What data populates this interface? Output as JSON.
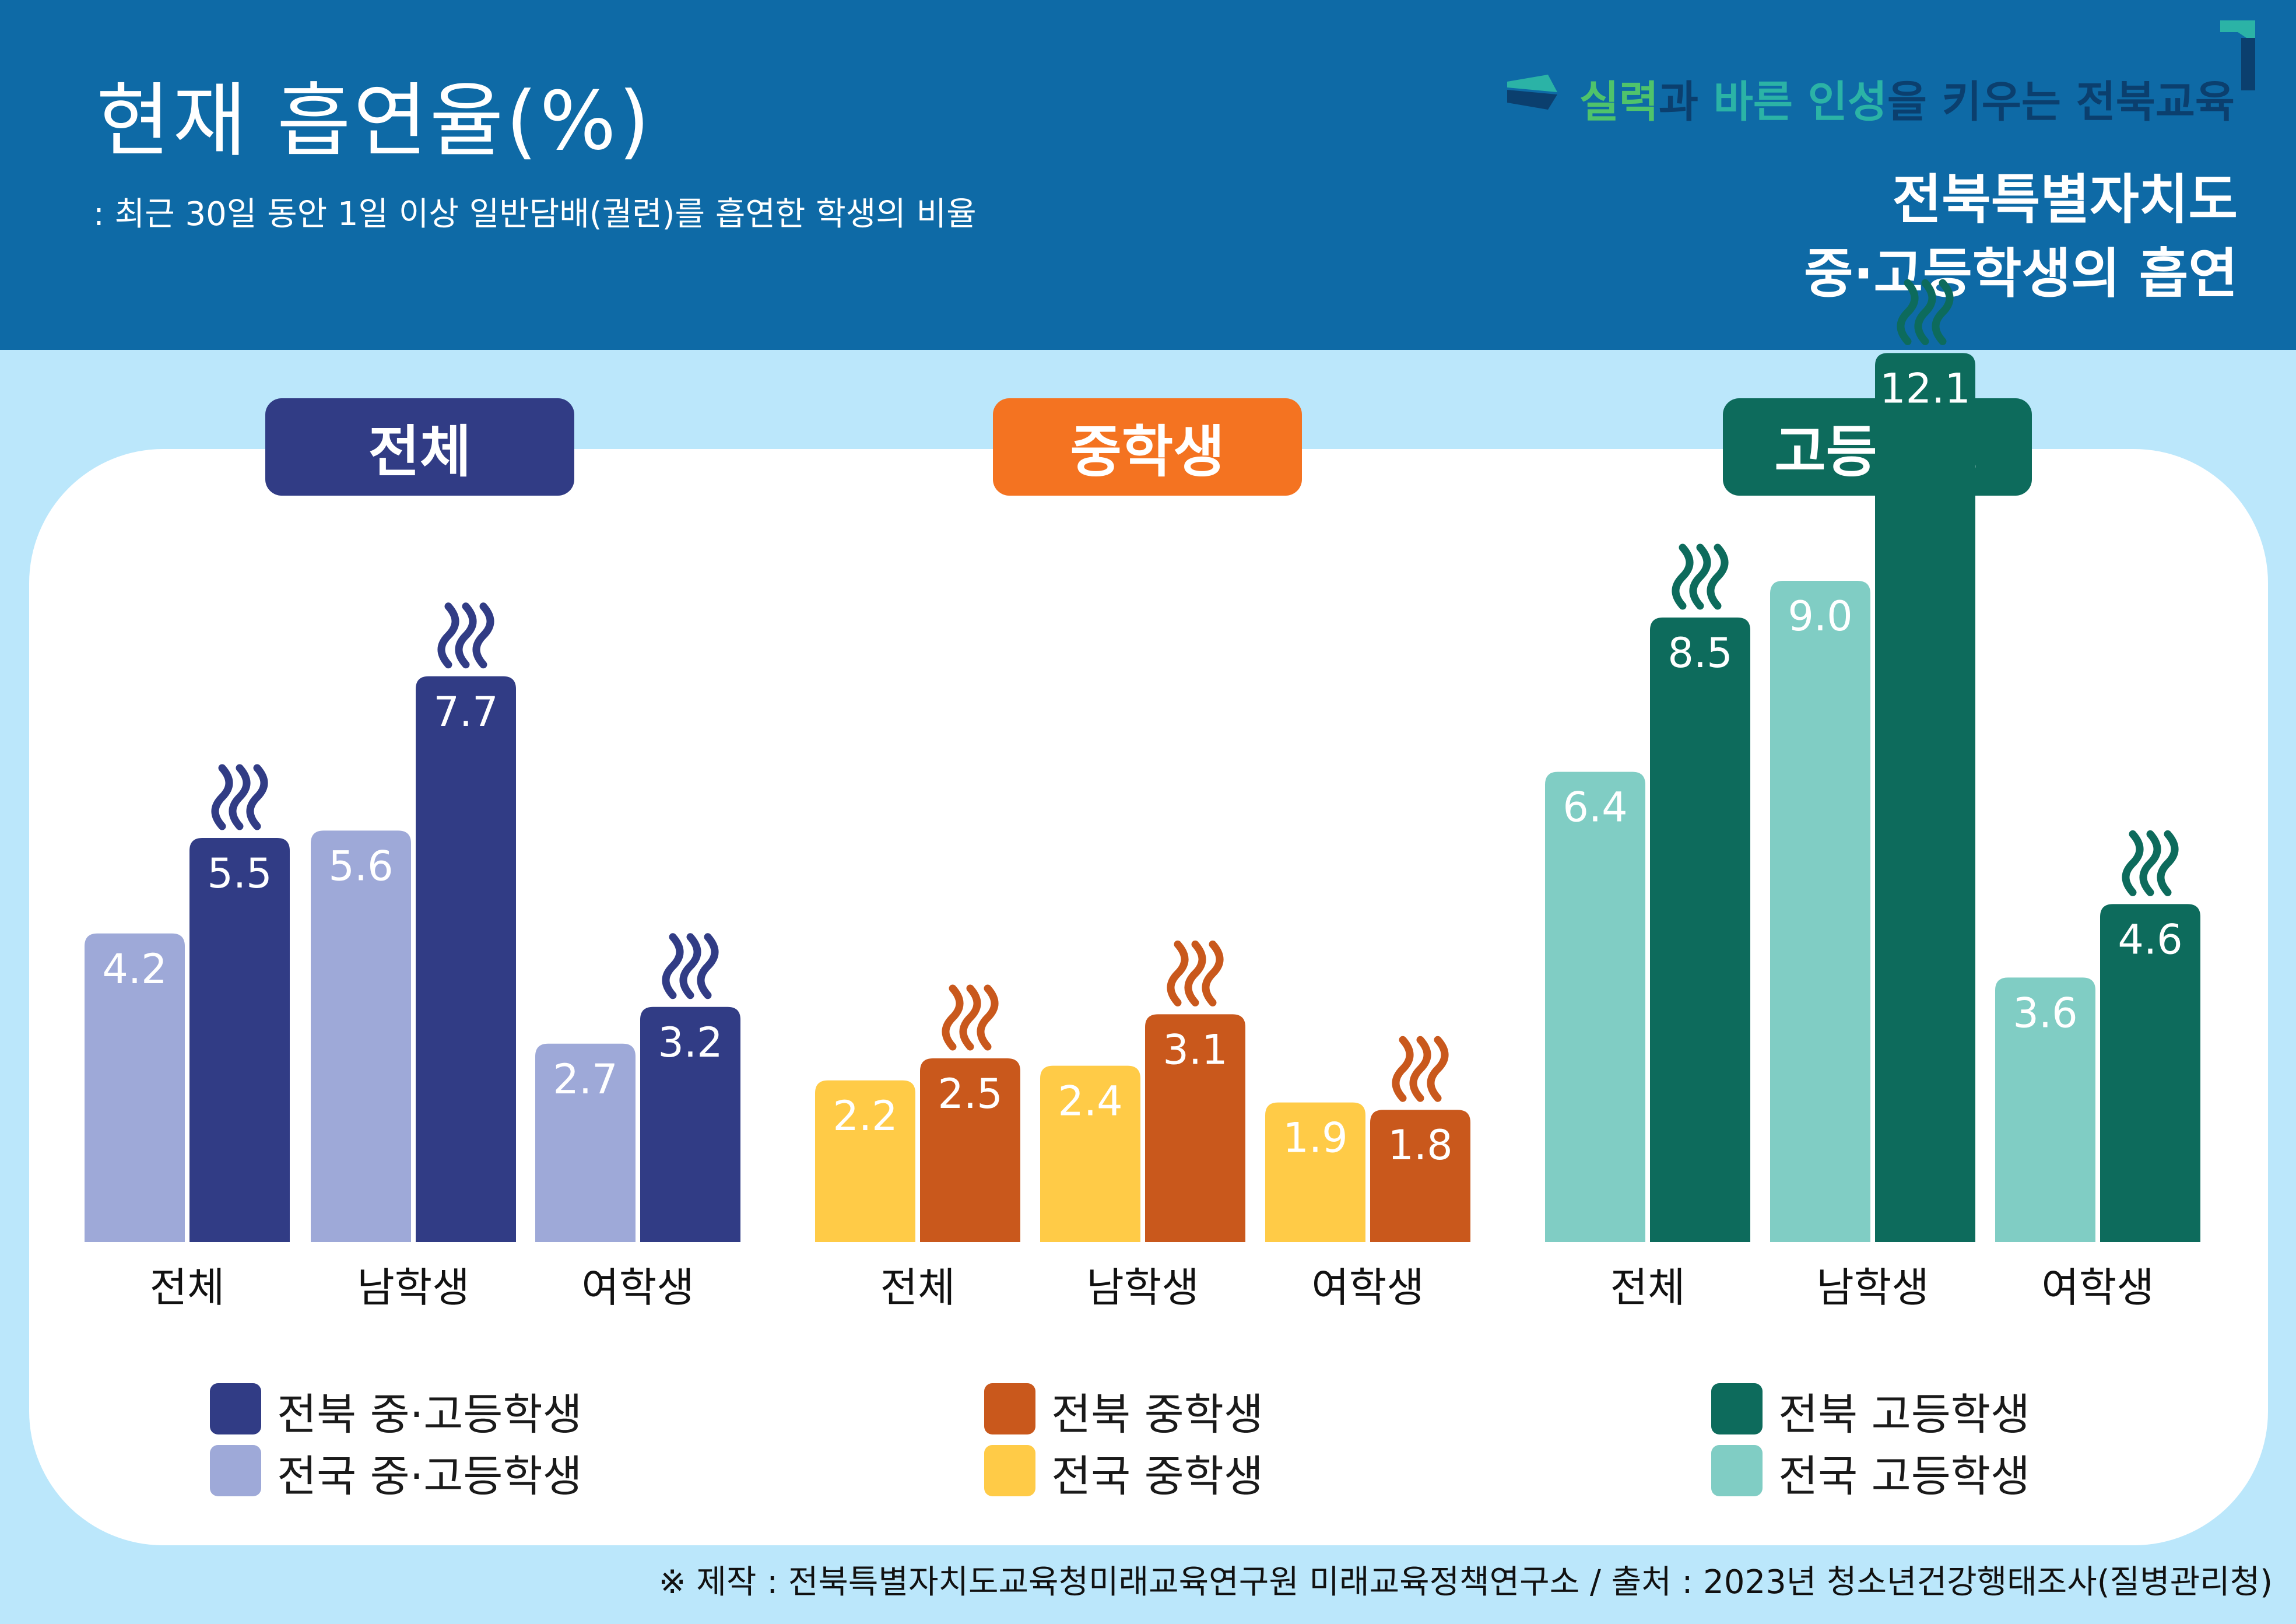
{
  "header": {
    "title": "현재 흡연율(%)",
    "subtitle": ": 최근 30일 동안 1일 이상 일반담배(궐련)를 흡연한 학생의 비율",
    "slogan_parts": [
      "실력",
      "과 ",
      "바른 인성",
      "을 키우는 전북교육"
    ],
    "title_right_line1": "전북특별자치도",
    "title_right_line2": "중·고등학생의 흡연"
  },
  "colors": {
    "header_bg": "#0e6aa6",
    "page_bg": "#bbe7fb",
    "all_dark": "#313c85",
    "all_light": "#9ea9d8",
    "middle_dark": "#c9581c",
    "middle_light": "#ffcb47",
    "high_dark": "#0d6b5c",
    "high_light": "#80cdc4",
    "middle_label": "#f47321"
  },
  "chart_data": [
    {
      "type": "bar",
      "title": "전체",
      "categories": [
        "전체",
        "남학생",
        "여학생"
      ],
      "series": [
        {
          "name": "전국 중·고등학생",
          "values": [
            4.2,
            5.6,
            2.7
          ]
        },
        {
          "name": "전북 중·고등학생",
          "values": [
            5.5,
            7.7,
            3.2
          ]
        }
      ],
      "ylim": [
        0,
        13.2
      ],
      "grid": false,
      "legend": "bottom"
    },
    {
      "type": "bar",
      "title": "중학생",
      "categories": [
        "전체",
        "남학생",
        "여학생"
      ],
      "series": [
        {
          "name": "전국 중학생",
          "values": [
            2.2,
            2.4,
            1.9
          ]
        },
        {
          "name": "전북 중학생",
          "values": [
            2.5,
            3.1,
            1.8
          ]
        }
      ],
      "ylim": [
        0,
        13.2
      ],
      "grid": false,
      "legend": "bottom"
    },
    {
      "type": "bar",
      "title": "고등학생",
      "categories": [
        "전체",
        "남학생",
        "여학생"
      ],
      "series": [
        {
          "name": "전국 고등학생",
          "values": [
            6.4,
            9.0,
            3.6
          ]
        },
        {
          "name": "전북 고등학생",
          "values": [
            8.5,
            12.1,
            4.6
          ]
        }
      ],
      "ylim": [
        0,
        13.2
      ],
      "grid": false,
      "legend": "bottom"
    }
  ],
  "footer": "※ 제작 : 전북특별자치도교육청미래교육연구원 미래교육정책연구소 / 출처 : 2023년 청소년건강행태조사(질병관리청)"
}
